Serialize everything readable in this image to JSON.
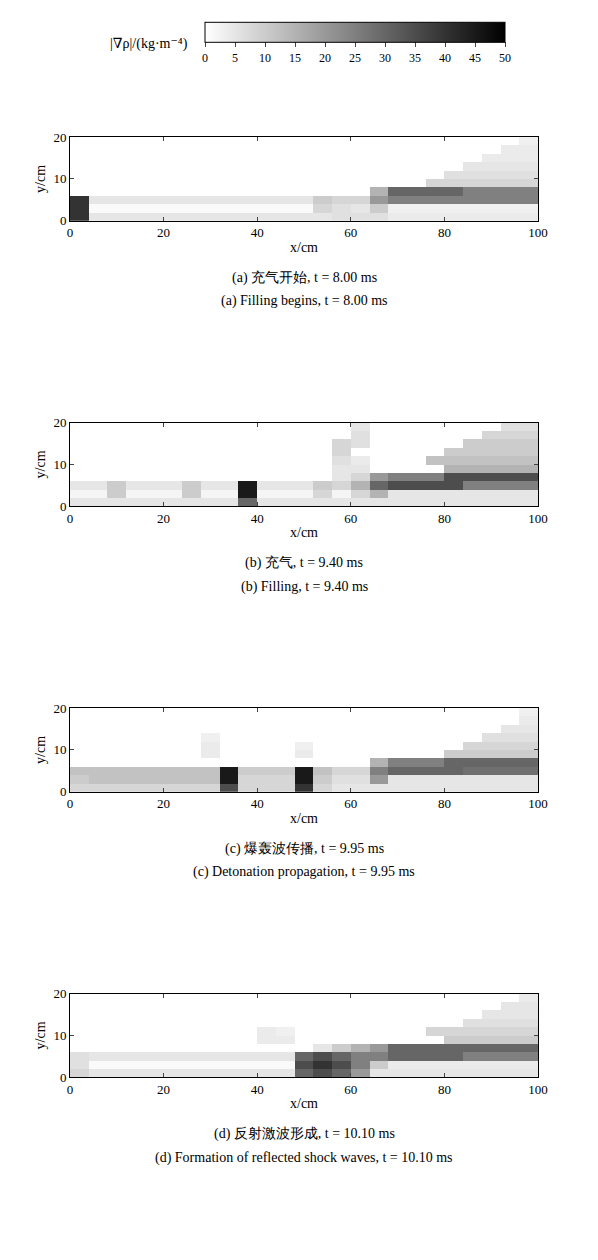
{
  "chart_data": [
    {
      "type": "heatmap",
      "title": "(a) 充气开始, t = 8.00 ms",
      "subtitle": "(a) Filling begins, t = 8.00 ms",
      "x_label": "x/cm",
      "y_label": "y/cm",
      "xlim": [
        0,
        100
      ],
      "ylim": [
        0,
        20
      ],
      "xticks": [
        0,
        20,
        40,
        60,
        80,
        100
      ],
      "yticks": [
        0,
        10,
        20
      ],
      "color_bar": {
        "title": "|∇ρ|/(kg·m⁻⁴)",
        "range": [
          0,
          50
        ],
        "ticks": [
          0,
          5,
          10,
          15,
          20,
          25,
          30,
          35,
          40,
          45,
          50
        ],
        "colors": [
          "#ffffff",
          "#000000"
        ]
      },
      "x": [
        2,
        6,
        10,
        14,
        18,
        22,
        26,
        30,
        34,
        38,
        42,
        46,
        50,
        54,
        58,
        62,
        66,
        70,
        74,
        78,
        82,
        86,
        90,
        94,
        98
      ],
      "y": [
        1,
        3,
        5,
        7,
        9,
        11,
        13,
        15,
        17,
        19
      ],
      "z": [
        [
          40,
          5,
          5,
          5,
          5,
          5,
          5,
          5,
          5,
          5,
          5,
          5,
          5,
          5,
          6,
          6,
          6,
          4,
          4,
          4,
          4,
          4,
          4,
          4,
          4
        ],
        [
          40,
          1,
          1,
          1,
          1,
          1,
          1,
          1,
          1,
          1,
          1,
          1,
          1,
          8,
          6,
          5,
          10,
          3,
          3,
          3,
          3,
          3,
          3,
          3,
          3
        ],
        [
          40,
          5,
          5,
          5,
          5,
          5,
          5,
          5,
          5,
          5,
          5,
          5,
          5,
          10,
          8,
          8,
          20,
          25,
          25,
          25,
          25,
          25,
          25,
          25,
          25
        ],
        [
          0,
          0,
          0,
          0,
          0,
          0,
          0,
          0,
          0,
          0,
          0,
          0,
          0,
          0,
          0,
          0,
          15,
          30,
          30,
          30,
          30,
          25,
          25,
          25,
          25
        ],
        [
          0,
          0,
          0,
          0,
          0,
          0,
          0,
          0,
          0,
          0,
          0,
          0,
          0,
          0,
          0,
          0,
          0,
          0,
          0,
          8,
          8,
          8,
          8,
          8,
          8
        ],
        [
          0,
          0,
          0,
          0,
          0,
          0,
          0,
          0,
          0,
          0,
          0,
          0,
          0,
          0,
          0,
          0,
          0,
          0,
          0,
          0,
          6,
          6,
          6,
          6,
          6
        ],
        [
          0,
          0,
          0,
          0,
          0,
          0,
          0,
          0,
          0,
          0,
          0,
          0,
          0,
          0,
          0,
          0,
          0,
          0,
          0,
          0,
          0,
          5,
          5,
          5,
          5
        ],
        [
          0,
          0,
          0,
          0,
          0,
          0,
          0,
          0,
          0,
          0,
          0,
          0,
          0,
          0,
          0,
          0,
          0,
          0,
          0,
          0,
          0,
          0,
          4,
          4,
          4
        ],
        [
          0,
          0,
          0,
          0,
          0,
          0,
          0,
          0,
          0,
          0,
          0,
          0,
          0,
          0,
          0,
          0,
          0,
          0,
          0,
          0,
          0,
          0,
          0,
          4,
          4
        ],
        [
          0,
          0,
          0,
          0,
          0,
          0,
          0,
          0,
          0,
          0,
          0,
          0,
          0,
          0,
          0,
          0,
          0,
          0,
          0,
          0,
          0,
          0,
          0,
          0,
          3
        ]
      ]
    },
    {
      "type": "heatmap",
      "title": "(b) 充气, t = 9.40 ms",
      "subtitle": "(b) Filling, t = 9.40 ms",
      "x_label": "x/cm",
      "y_label": "y/cm",
      "xlim": [
        0,
        100
      ],
      "ylim": [
        0,
        20
      ],
      "xticks": [
        0,
        20,
        40,
        60,
        80,
        100
      ],
      "yticks": [
        0,
        10,
        20
      ],
      "x": [
        2,
        6,
        10,
        14,
        18,
        22,
        26,
        30,
        34,
        38,
        42,
        46,
        50,
        54,
        58,
        62,
        66,
        70,
        74,
        78,
        82,
        86,
        90,
        94,
        98
      ],
      "y": [
        1,
        3,
        5,
        7,
        9,
        11,
        13,
        15,
        17,
        19
      ],
      "z": [
        [
          5,
          5,
          5,
          5,
          5,
          5,
          5,
          5,
          5,
          30,
          5,
          5,
          5,
          5,
          5,
          5,
          5,
          5,
          5,
          5,
          5,
          5,
          5,
          5,
          5
        ],
        [
          2,
          2,
          10,
          2,
          2,
          2,
          10,
          2,
          2,
          45,
          2,
          2,
          2,
          8,
          2,
          8,
          15,
          5,
          5,
          5,
          5,
          5,
          5,
          5,
          5
        ],
        [
          5,
          5,
          10,
          5,
          5,
          5,
          10,
          5,
          5,
          45,
          5,
          5,
          5,
          10,
          8,
          15,
          30,
          35,
          35,
          35,
          35,
          25,
          25,
          25,
          25
        ],
        [
          0,
          0,
          0,
          0,
          0,
          0,
          0,
          0,
          0,
          0,
          0,
          0,
          0,
          0,
          5,
          8,
          20,
          25,
          25,
          25,
          35,
          35,
          35,
          35,
          35
        ],
        [
          0,
          0,
          0,
          0,
          0,
          0,
          0,
          0,
          0,
          0,
          0,
          0,
          0,
          0,
          5,
          5,
          0,
          0,
          0,
          0,
          15,
          15,
          15,
          15,
          15
        ],
        [
          0,
          0,
          0,
          0,
          0,
          0,
          0,
          0,
          0,
          0,
          0,
          0,
          0,
          0,
          6,
          4,
          0,
          0,
          0,
          12,
          12,
          12,
          12,
          12,
          12
        ],
        [
          0,
          0,
          0,
          0,
          0,
          0,
          0,
          0,
          0,
          0,
          0,
          0,
          0,
          0,
          8,
          0,
          0,
          0,
          0,
          0,
          10,
          10,
          10,
          10,
          10
        ],
        [
          0,
          0,
          0,
          0,
          0,
          0,
          0,
          0,
          0,
          0,
          0,
          0,
          0,
          0,
          8,
          6,
          0,
          0,
          0,
          0,
          0,
          10,
          10,
          10,
          10
        ],
        [
          0,
          0,
          0,
          0,
          0,
          0,
          0,
          0,
          0,
          0,
          0,
          0,
          0,
          0,
          0,
          6,
          0,
          0,
          0,
          0,
          0,
          0,
          8,
          8,
          8
        ],
        [
          0,
          0,
          0,
          0,
          0,
          0,
          0,
          0,
          0,
          0,
          0,
          0,
          0,
          0,
          0,
          5,
          0,
          0,
          0,
          0,
          0,
          0,
          0,
          6,
          6
        ]
      ]
    },
    {
      "type": "heatmap",
      "title": "(c) 爆轰波传播, t = 9.95 ms",
      "subtitle": "(c) Detonation propagation, t = 9.95 ms",
      "x_label": "x/cm",
      "y_label": "y/cm",
      "xlim": [
        0,
        100
      ],
      "ylim": [
        0,
        20
      ],
      "xticks": [
        0,
        20,
        40,
        60,
        80,
        100
      ],
      "yticks": [
        0,
        10,
        20
      ],
      "x": [
        2,
        6,
        10,
        14,
        18,
        22,
        26,
        30,
        34,
        38,
        42,
        46,
        50,
        54,
        58,
        62,
        66,
        70,
        74,
        78,
        82,
        86,
        90,
        94,
        98
      ],
      "y": [
        1,
        3,
        5,
        7,
        9,
        11,
        13,
        15,
        17,
        19
      ],
      "z": [
        [
          8,
          8,
          8,
          8,
          8,
          8,
          8,
          8,
          35,
          8,
          8,
          8,
          40,
          8,
          5,
          5,
          5,
          5,
          5,
          5,
          5,
          5,
          5,
          5,
          5
        ],
        [
          10,
          12,
          12,
          12,
          12,
          12,
          12,
          12,
          45,
          8,
          8,
          8,
          45,
          10,
          6,
          6,
          20,
          5,
          5,
          5,
          5,
          5,
          5,
          5,
          5
        ],
        [
          12,
          12,
          12,
          12,
          12,
          12,
          12,
          12,
          45,
          10,
          10,
          10,
          45,
          12,
          8,
          8,
          25,
          30,
          30,
          30,
          30,
          28,
          28,
          28,
          28
        ],
        [
          0,
          0,
          0,
          0,
          0,
          0,
          0,
          0,
          0,
          0,
          0,
          0,
          0,
          0,
          0,
          0,
          15,
          25,
          25,
          25,
          30,
          30,
          30,
          30,
          30
        ],
        [
          0,
          0,
          0,
          0,
          0,
          0,
          0,
          4,
          0,
          0,
          0,
          0,
          4,
          0,
          0,
          0,
          0,
          0,
          0,
          0,
          10,
          10,
          10,
          10,
          10
        ],
        [
          0,
          0,
          0,
          0,
          0,
          0,
          0,
          4,
          0,
          0,
          0,
          0,
          3,
          0,
          0,
          0,
          0,
          0,
          0,
          0,
          0,
          8,
          8,
          8,
          8
        ],
        [
          0,
          0,
          0,
          0,
          0,
          0,
          0,
          3,
          0,
          0,
          0,
          0,
          0,
          0,
          0,
          0,
          0,
          0,
          0,
          0,
          0,
          0,
          6,
          6,
          6
        ],
        [
          0,
          0,
          0,
          0,
          0,
          0,
          0,
          0,
          0,
          0,
          0,
          0,
          0,
          0,
          0,
          0,
          0,
          0,
          0,
          0,
          0,
          0,
          0,
          5,
          5
        ],
        [
          0,
          0,
          0,
          0,
          0,
          0,
          0,
          0,
          0,
          0,
          0,
          0,
          0,
          0,
          0,
          0,
          0,
          0,
          0,
          0,
          0,
          0,
          0,
          0,
          4
        ],
        [
          0,
          0,
          0,
          0,
          0,
          0,
          0,
          0,
          0,
          0,
          0,
          0,
          0,
          0,
          0,
          0,
          0,
          0,
          0,
          0,
          0,
          0,
          0,
          0,
          3
        ]
      ]
    },
    {
      "type": "heatmap",
      "title": "(d) 反射激波形成, t = 10.10 ms",
      "subtitle": "(d) Formation of reflected shock waves, t = 10.10 ms",
      "x_label": "x/cm",
      "y_label": "y/cm",
      "xlim": [
        0,
        100
      ],
      "ylim": [
        0,
        20
      ],
      "xticks": [
        0,
        20,
        40,
        60,
        80,
        100
      ],
      "yticks": [
        0,
        10,
        20
      ],
      "x": [
        2,
        6,
        10,
        14,
        18,
        22,
        26,
        30,
        34,
        38,
        42,
        46,
        50,
        54,
        58,
        62,
        66,
        70,
        74,
        78,
        82,
        86,
        90,
        94,
        98
      ],
      "y": [
        1,
        3,
        5,
        7,
        9,
        11,
        13,
        15,
        17,
        19
      ],
      "z": [
        [
          8,
          5,
          5,
          5,
          5,
          5,
          5,
          5,
          5,
          5,
          5,
          5,
          30,
          35,
          30,
          20,
          5,
          5,
          5,
          5,
          5,
          5,
          5,
          5,
          5
        ],
        [
          6,
          1,
          1,
          1,
          1,
          1,
          1,
          1,
          1,
          1,
          1,
          1,
          35,
          40,
          35,
          25,
          10,
          4,
          4,
          4,
          4,
          4,
          4,
          4,
          4
        ],
        [
          6,
          5,
          5,
          5,
          5,
          5,
          5,
          5,
          5,
          5,
          5,
          5,
          30,
          35,
          30,
          25,
          25,
          30,
          30,
          30,
          30,
          25,
          25,
          25,
          25
        ],
        [
          0,
          0,
          0,
          0,
          0,
          0,
          0,
          0,
          0,
          0,
          0,
          0,
          0,
          5,
          10,
          15,
          20,
          30,
          30,
          30,
          30,
          30,
          30,
          30,
          30
        ],
        [
          0,
          0,
          0,
          0,
          0,
          0,
          0,
          0,
          0,
          0,
          4,
          4,
          0,
          0,
          0,
          0,
          0,
          0,
          0,
          0,
          10,
          10,
          10,
          10,
          10
        ],
        [
          0,
          0,
          0,
          0,
          0,
          0,
          0,
          0,
          0,
          0,
          4,
          3,
          0,
          0,
          0,
          0,
          0,
          0,
          0,
          8,
          8,
          8,
          8,
          8,
          8
        ],
        [
          0,
          0,
          0,
          0,
          0,
          0,
          0,
          0,
          0,
          0,
          0,
          0,
          0,
          0,
          0,
          0,
          0,
          0,
          0,
          0,
          0,
          6,
          6,
          6,
          6
        ],
        [
          0,
          0,
          0,
          0,
          0,
          0,
          0,
          0,
          0,
          0,
          0,
          0,
          0,
          0,
          0,
          0,
          0,
          0,
          0,
          0,
          0,
          0,
          5,
          5,
          5
        ],
        [
          0,
          0,
          0,
          0,
          0,
          0,
          0,
          0,
          0,
          0,
          0,
          0,
          0,
          0,
          0,
          0,
          0,
          0,
          0,
          0,
          0,
          0,
          0,
          5,
          5
        ],
        [
          0,
          0,
          0,
          0,
          0,
          0,
          0,
          0,
          0,
          0,
          0,
          0,
          0,
          0,
          0,
          0,
          0,
          0,
          0,
          0,
          0,
          0,
          0,
          0,
          4
        ]
      ]
    }
  ]
}
